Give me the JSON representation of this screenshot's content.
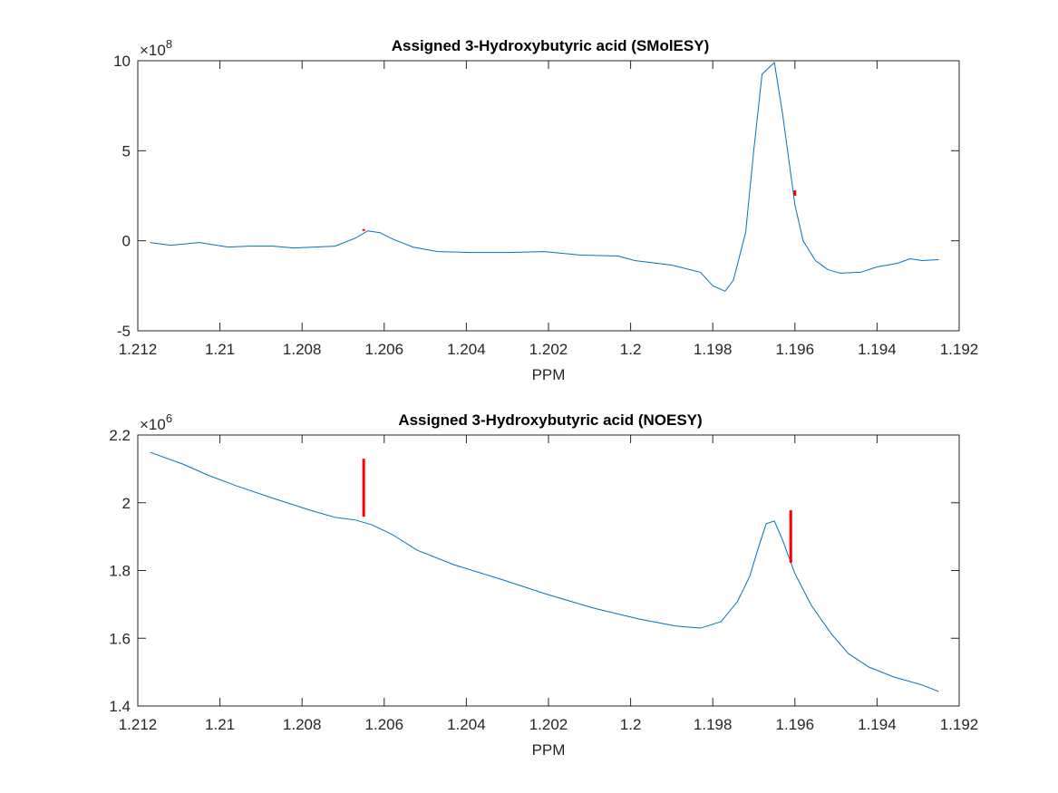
{
  "chart_data": [
    {
      "type": "line",
      "title": "Assigned 3-Hydroxybutyric acid  (SMolESY)",
      "xlabel": "PPM",
      "y_scale_label": {
        "base": "×10",
        "exponent": "8"
      },
      "xlim": [
        1.212,
        1.192
      ],
      "xticks": [
        1.212,
        1.21,
        1.208,
        1.206,
        1.204,
        1.202,
        1.2,
        1.198,
        1.196,
        1.194,
        1.192
      ],
      "ylim": [
        -5,
        10
      ],
      "yticks": [
        -5,
        0,
        5,
        10
      ],
      "color": "#0072bd",
      "x": [
        1.2117,
        1.2112,
        1.2105,
        1.2098,
        1.2093,
        1.2087,
        1.2082,
        1.2077,
        1.2072,
        1.2067,
        1.2064,
        1.2061,
        1.2058,
        1.2053,
        1.2047,
        1.2039,
        1.203,
        1.2021,
        1.2012,
        1.2003,
        1.1999,
        1.199,
        1.1983,
        1.198,
        1.1977,
        1.1975,
        1.1972,
        1.197,
        1.1968,
        1.1965,
        1.1963,
        1.196,
        1.1958,
        1.1955,
        1.1952,
        1.1949,
        1.1944,
        1.194,
        1.1935,
        1.1932,
        1.1929,
        1.1925
      ],
      "values": [
        -0.1,
        -0.25,
        -0.1,
        -0.35,
        -0.3,
        -0.3,
        -0.4,
        -0.35,
        -0.3,
        0.15,
        0.55,
        0.45,
        0.1,
        -0.35,
        -0.6,
        -0.65,
        -0.65,
        -0.6,
        -0.8,
        -0.85,
        -1.1,
        -1.35,
        -1.75,
        -2.5,
        -2.8,
        -2.2,
        0.45,
        5.05,
        9.25,
        9.9,
        7.05,
        2.0,
        0,
        -1.1,
        -1.6,
        -1.8,
        -1.75,
        -1.45,
        -1.25,
        -1.0,
        -1.1,
        -1.05
      ],
      "marker_color": "#ff0000",
      "markers": [
        {
          "x": 1.2065,
          "y1": 0.55,
          "y2": 0.65
        },
        {
          "x": 1.196,
          "y1": 2.5,
          "y2": 2.8
        }
      ]
    },
    {
      "type": "line",
      "title": "Assigned 3-Hydroxybutyric acid  (NOESY)",
      "xlabel": "PPM",
      "y_scale_label": {
        "base": "×10",
        "exponent": "6"
      },
      "xlim": [
        1.212,
        1.192
      ],
      "xticks": [
        1.212,
        1.21,
        1.208,
        1.206,
        1.204,
        1.202,
        1.2,
        1.198,
        1.196,
        1.194,
        1.192
      ],
      "ylim": [
        1.4,
        2.2
      ],
      "yticks": [
        1.4,
        1.6,
        1.8,
        2,
        2.2
      ],
      "color": "#0072bd",
      "x": [
        1.2117,
        1.2109,
        1.2103,
        1.2096,
        1.2087,
        1.2078,
        1.2072,
        1.2067,
        1.2063,
        1.2058,
        1.2052,
        1.2043,
        1.2031,
        1.2021,
        1.2009,
        1.1998,
        1.1989,
        1.1983,
        1.1978,
        1.1974,
        1.1971,
        1.1969,
        1.1967,
        1.1965,
        1.1963,
        1.196,
        1.1956,
        1.1951,
        1.1947,
        1.1942,
        1.1936,
        1.1929,
        1.1925
      ],
      "values": [
        2.149,
        2.114,
        2.082,
        2.05,
        2.013,
        1.978,
        1.957,
        1.949,
        1.935,
        1.906,
        1.86,
        1.817,
        1.772,
        1.732,
        1.689,
        1.657,
        1.636,
        1.63,
        1.649,
        1.708,
        1.783,
        1.863,
        1.938,
        1.946,
        1.89,
        1.791,
        1.697,
        1.611,
        1.555,
        1.515,
        1.486,
        1.462,
        1.443
      ],
      "marker_color": "#ff0000",
      "markers": [
        {
          "x": 1.2065,
          "y1": 1.959,
          "y2": 2.13
        },
        {
          "x": 1.1961,
          "y1": 1.823,
          "y2": 1.978
        }
      ]
    }
  ]
}
